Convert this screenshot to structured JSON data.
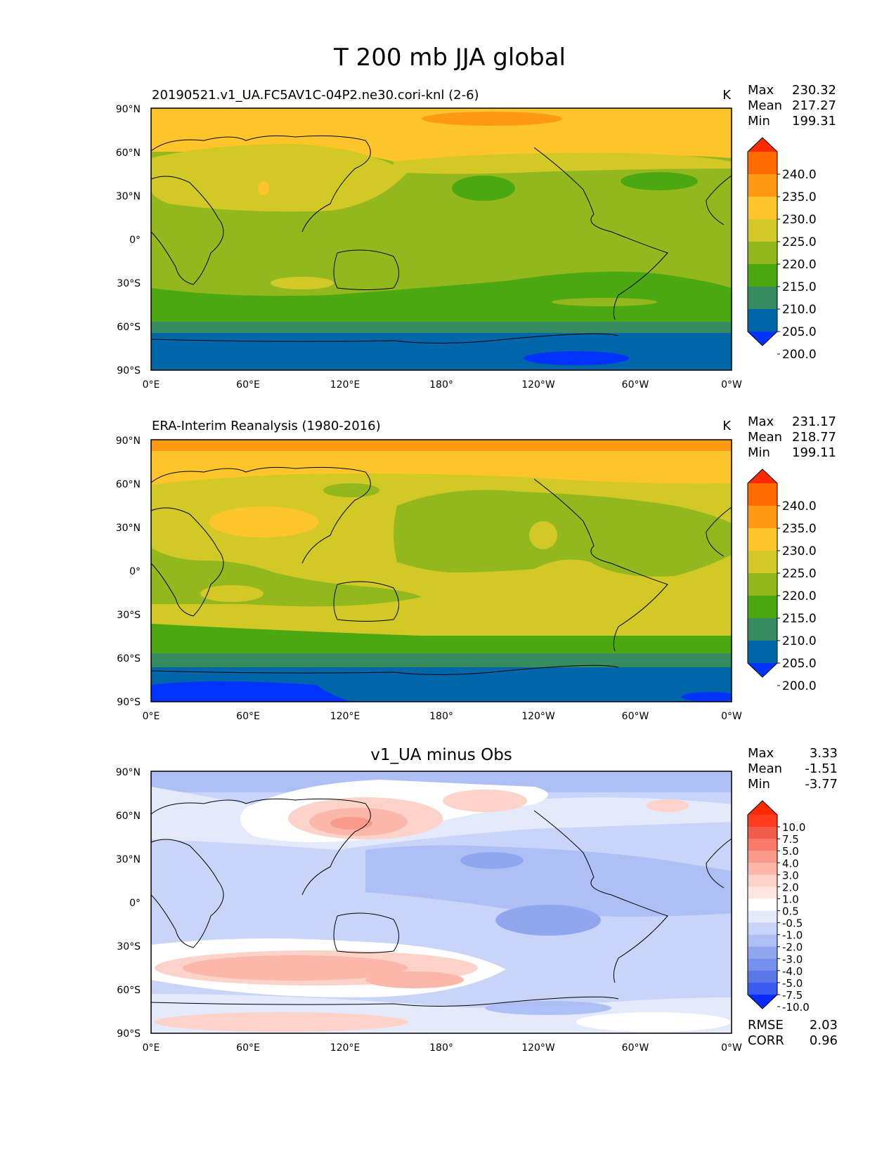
{
  "figure_title": "T 200 mb JJA global",
  "lat_ticks": [
    "90°N",
    "60°N",
    "30°N",
    "0°",
    "30°S",
    "60°S",
    "90°S"
  ],
  "lon_ticks": [
    "0°E",
    "60°E",
    "120°E",
    "180°",
    "120°W",
    "60°W",
    "0°W"
  ],
  "chart_data": [
    {
      "type": "heatmap",
      "panel": "test",
      "title": "20190521.v1_UA.FC5AV1C-04P2.ne30.cori-knl (2-6)",
      "units": "K",
      "stats": {
        "max_label": "Max",
        "max": "230.32",
        "mean_label": "Mean",
        "mean": "217.27",
        "min_label": "Min",
        "min": "199.31"
      },
      "colorbar": {
        "levels": [
          "240.0",
          "235.0",
          "230.0",
          "225.0",
          "220.0",
          "215.0",
          "210.0",
          "205.0",
          "200.0"
        ],
        "colors": [
          "#ff2a00",
          "#ff6a00",
          "#ff9a12",
          "#ffc52a",
          "#d2c926",
          "#93b81e",
          "#4ca811",
          "#358a60",
          "#0066aa",
          "#0033ff"
        ]
      },
      "xlim": [
        0,
        360
      ],
      "ylim": [
        -90,
        90
      ]
    },
    {
      "type": "heatmap",
      "panel": "reference",
      "title": "ERA-Interim Reanalysis (1980-2016)",
      "units": "K",
      "stats": {
        "max_label": "Max",
        "max": "231.17",
        "mean_label": "Mean",
        "mean": "218.77",
        "min_label": "Min",
        "min": "199.11"
      },
      "colorbar": {
        "levels": [
          "240.0",
          "235.0",
          "230.0",
          "225.0",
          "220.0",
          "215.0",
          "210.0",
          "205.0",
          "200.0"
        ],
        "colors": [
          "#ff2a00",
          "#ff6a00",
          "#ff9a12",
          "#ffc52a",
          "#d2c926",
          "#93b81e",
          "#4ca811",
          "#358a60",
          "#0066aa",
          "#0033ff"
        ]
      },
      "xlim": [
        0,
        360
      ],
      "ylim": [
        -90,
        90
      ]
    },
    {
      "type": "heatmap",
      "panel": "difference",
      "title": "v1_UA minus Obs",
      "units": "",
      "stats": {
        "max_label": "Max",
        "max": "3.33",
        "mean_label": "Mean",
        "mean": "-1.51",
        "min_label": "Min",
        "min": "-3.77"
      },
      "colorbar": {
        "levels": [
          "10.0",
          "7.5",
          "5.0",
          "4.0",
          "3.0",
          "2.0",
          "1.0",
          "0.5",
          "-0.5",
          "-1.0",
          "-2.0",
          "-3.0",
          "-4.0",
          "-5.0",
          "-7.5",
          "-10.0"
        ],
        "colors": [
          "#ff2a00",
          "#ff3a20",
          "#f25a4a",
          "#f77a6a",
          "#f99a8a",
          "#fbb8aa",
          "#fdd2c8",
          "#ffe6e0",
          "#ffffff",
          "#e4eafc",
          "#c8d4f8",
          "#adbff4",
          "#90a7f0",
          "#7690ec",
          "#5a78e8",
          "#3a5cf0",
          "#0a2aff"
        ]
      },
      "metrics": {
        "rmse_label": "RMSE",
        "rmse": "2.03",
        "corr_label": "CORR",
        "corr": "0.96"
      },
      "xlim": [
        0,
        360
      ],
      "ylim": [
        -90,
        90
      ]
    }
  ]
}
